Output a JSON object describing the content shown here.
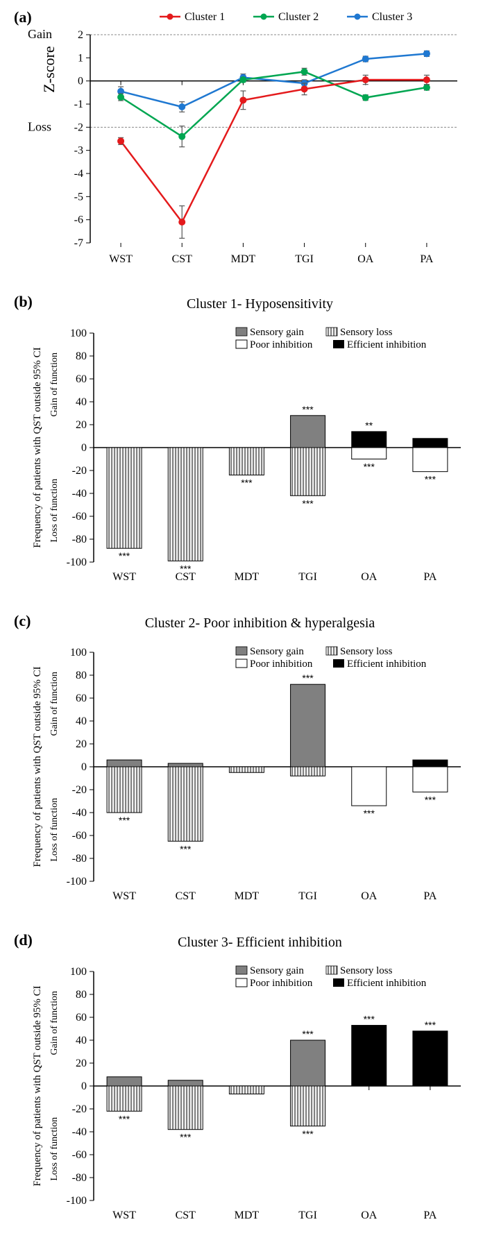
{
  "categories": [
    "WST",
    "CST",
    "MDT",
    "TGI",
    "OA",
    "PA"
  ],
  "colors": {
    "cluster1": "#e41a1c",
    "cluster2": "#00a651",
    "cluster3": "#1f78d1",
    "sensory_gain_fill": "#808080",
    "sensory_loss_stripe": "#808080",
    "poor_inhibition": "#ffffff",
    "efficient_inhibition": "#000000",
    "background": "#ffffff",
    "axis": "#000000"
  },
  "panel_a": {
    "label": "(a)",
    "ylabel": "Z-score",
    "gain_label": "Gain",
    "loss_label": "Loss",
    "ylim": [
      -7,
      2
    ],
    "ytick_step": 1,
    "ref_lines": [
      2,
      -2
    ],
    "legend": [
      {
        "name": "Cluster 1",
        "color": "#e41a1c"
      },
      {
        "name": "Cluster 2",
        "color": "#00a651"
      },
      {
        "name": "Cluster 3",
        "color": "#1f78d1"
      }
    ],
    "series": {
      "cluster1": {
        "values": [
          -2.6,
          -6.1,
          -0.83,
          -0.35,
          0.05,
          0.05
        ],
        "err": [
          0.15,
          0.7,
          0.4,
          0.25,
          0.2,
          0.2
        ]
      },
      "cluster2": {
        "values": [
          -0.7,
          -2.4,
          0.05,
          0.4,
          -0.72,
          -0.28
        ],
        "err": [
          0.15,
          0.45,
          0.1,
          0.15,
          0.12,
          0.12
        ]
      },
      "cluster3": {
        "values": [
          -0.45,
          -1.12,
          0.15,
          -0.1,
          0.95,
          1.18
        ],
        "err": [
          0.2,
          0.22,
          0.15,
          0.15,
          0.12,
          0.12
        ]
      }
    }
  },
  "bar_common": {
    "ylabel": "Frequency of patients with QST outside 95% CI",
    "gain_label": "Gain of function",
    "loss_label": "Loss of function",
    "ylim": [
      -100,
      100
    ],
    "ytick_step": 20,
    "legend": {
      "sensory_gain": "Sensory gain",
      "sensory_loss": "Sensory loss",
      "poor_inhibition": "Poor inhibition",
      "efficient_inhibition": "Efficient inhibition"
    }
  },
  "panel_b": {
    "label": "(b)",
    "title": "Cluster 1- Hyposensitivity",
    "bars": [
      {
        "cat": "WST",
        "pos": null,
        "neg": -88,
        "pos_type": null,
        "neg_type": "loss",
        "pos_sig": null,
        "neg_sig": "***"
      },
      {
        "cat": "CST",
        "pos": null,
        "neg": -99,
        "pos_type": null,
        "neg_type": "loss",
        "pos_sig": null,
        "neg_sig": "***"
      },
      {
        "cat": "MDT",
        "pos": null,
        "neg": -24,
        "pos_type": null,
        "neg_type": "loss",
        "pos_sig": null,
        "neg_sig": "***"
      },
      {
        "cat": "TGI",
        "pos": 28,
        "neg": -42,
        "pos_type": "gain",
        "neg_type": "loss",
        "pos_sig": "***",
        "neg_sig": "***"
      },
      {
        "cat": "OA",
        "pos": 14,
        "neg": -10,
        "pos_type": "eff",
        "neg_type": "poor",
        "pos_sig": "**",
        "neg_sig": "***"
      },
      {
        "cat": "PA",
        "pos": 8,
        "neg": -21,
        "pos_type": "eff",
        "neg_type": "poor",
        "pos_sig": null,
        "neg_sig": "***"
      }
    ]
  },
  "panel_c": {
    "label": "(c)",
    "title": "Cluster 2- Poor inhibition & hyperalgesia",
    "bars": [
      {
        "cat": "WST",
        "pos": 6,
        "neg": -40,
        "pos_type": "gain",
        "neg_type": "loss",
        "pos_sig": null,
        "neg_sig": "***"
      },
      {
        "cat": "CST",
        "pos": 3,
        "neg": -65,
        "pos_type": "gain",
        "neg_type": "loss",
        "pos_sig": null,
        "neg_sig": "***"
      },
      {
        "cat": "MDT",
        "pos": null,
        "neg": -5,
        "pos_type": null,
        "neg_type": "loss",
        "pos_sig": null,
        "neg_sig": null
      },
      {
        "cat": "TGI",
        "pos": 72,
        "neg": -8,
        "pos_type": "gain",
        "neg_type": "loss",
        "pos_sig": "***",
        "neg_sig": null
      },
      {
        "cat": "OA",
        "pos": null,
        "neg": -34,
        "pos_type": null,
        "neg_type": "poor",
        "pos_sig": null,
        "neg_sig": "***"
      },
      {
        "cat": "PA",
        "pos": 6,
        "neg": -22,
        "pos_type": "eff",
        "neg_type": "poor",
        "pos_sig": null,
        "neg_sig": "***"
      }
    ]
  },
  "panel_d": {
    "label": "(d)",
    "title": "Cluster 3- Efficient inhibition",
    "bars": [
      {
        "cat": "WST",
        "pos": 8,
        "neg": -22,
        "pos_type": "gain",
        "neg_type": "loss",
        "pos_sig": null,
        "neg_sig": "***"
      },
      {
        "cat": "CST",
        "pos": 5,
        "neg": -38,
        "pos_type": "gain",
        "neg_type": "loss",
        "pos_sig": null,
        "neg_sig": "***"
      },
      {
        "cat": "MDT",
        "pos": null,
        "neg": -7,
        "pos_type": null,
        "neg_type": "loss",
        "pos_sig": null,
        "neg_sig": null
      },
      {
        "cat": "TGI",
        "pos": 40,
        "neg": -35,
        "pos_type": "gain",
        "neg_type": "loss",
        "pos_sig": "***",
        "neg_sig": "***"
      },
      {
        "cat": "OA",
        "pos": 53,
        "neg": null,
        "pos_type": "eff",
        "neg_type": null,
        "pos_sig": "***",
        "neg_sig": null
      },
      {
        "cat": "PA",
        "pos": 48,
        "neg": null,
        "pos_type": "eff",
        "neg_type": null,
        "pos_sig": "***",
        "neg_sig": null
      }
    ]
  }
}
